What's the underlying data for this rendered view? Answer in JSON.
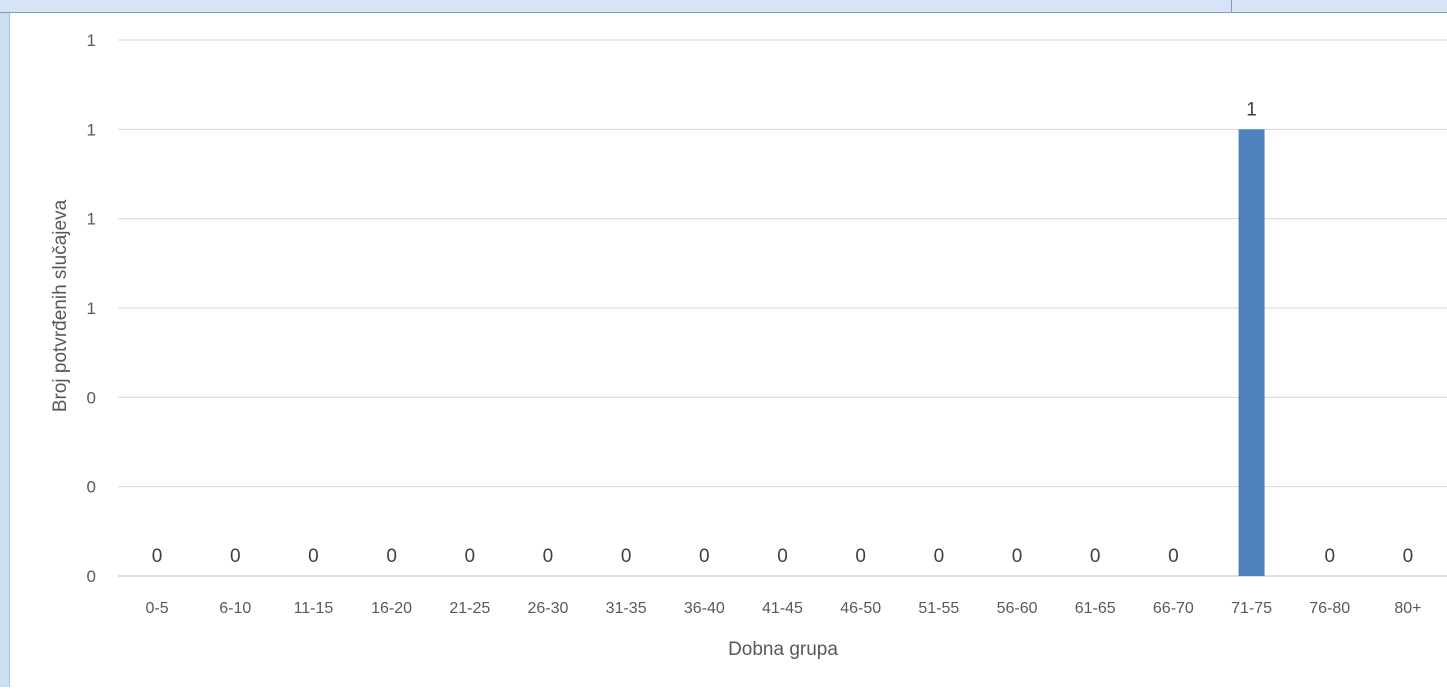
{
  "chart_data": {
    "type": "bar",
    "categories": [
      "0-5",
      "6-10",
      "11-15",
      "16-20",
      "21-25",
      "26-30",
      "31-35",
      "36-40",
      "41-45",
      "46-50",
      "51-55",
      "56-60",
      "61-65",
      "66-70",
      "71-75",
      "76-80",
      "80+"
    ],
    "values": [
      0,
      0,
      0,
      0,
      0,
      0,
      0,
      0,
      0,
      0,
      0,
      0,
      0,
      0,
      1,
      0,
      0
    ],
    "data_labels": [
      "0",
      "0",
      "0",
      "0",
      "0",
      "0",
      "0",
      "0",
      "0",
      "0",
      "0",
      "0",
      "0",
      "0",
      "1",
      "0",
      "0"
    ],
    "xlabel": "Dobna grupa",
    "ylabel": "Broj potvrđenih slučajeva",
    "y_tick_labels": [
      "0",
      "0",
      "0",
      "1",
      "1",
      "1",
      "1"
    ],
    "ylim": [
      0,
      1.2
    ],
    "bar_color": "#4f81bd",
    "grid": true,
    "legend": "none"
  }
}
